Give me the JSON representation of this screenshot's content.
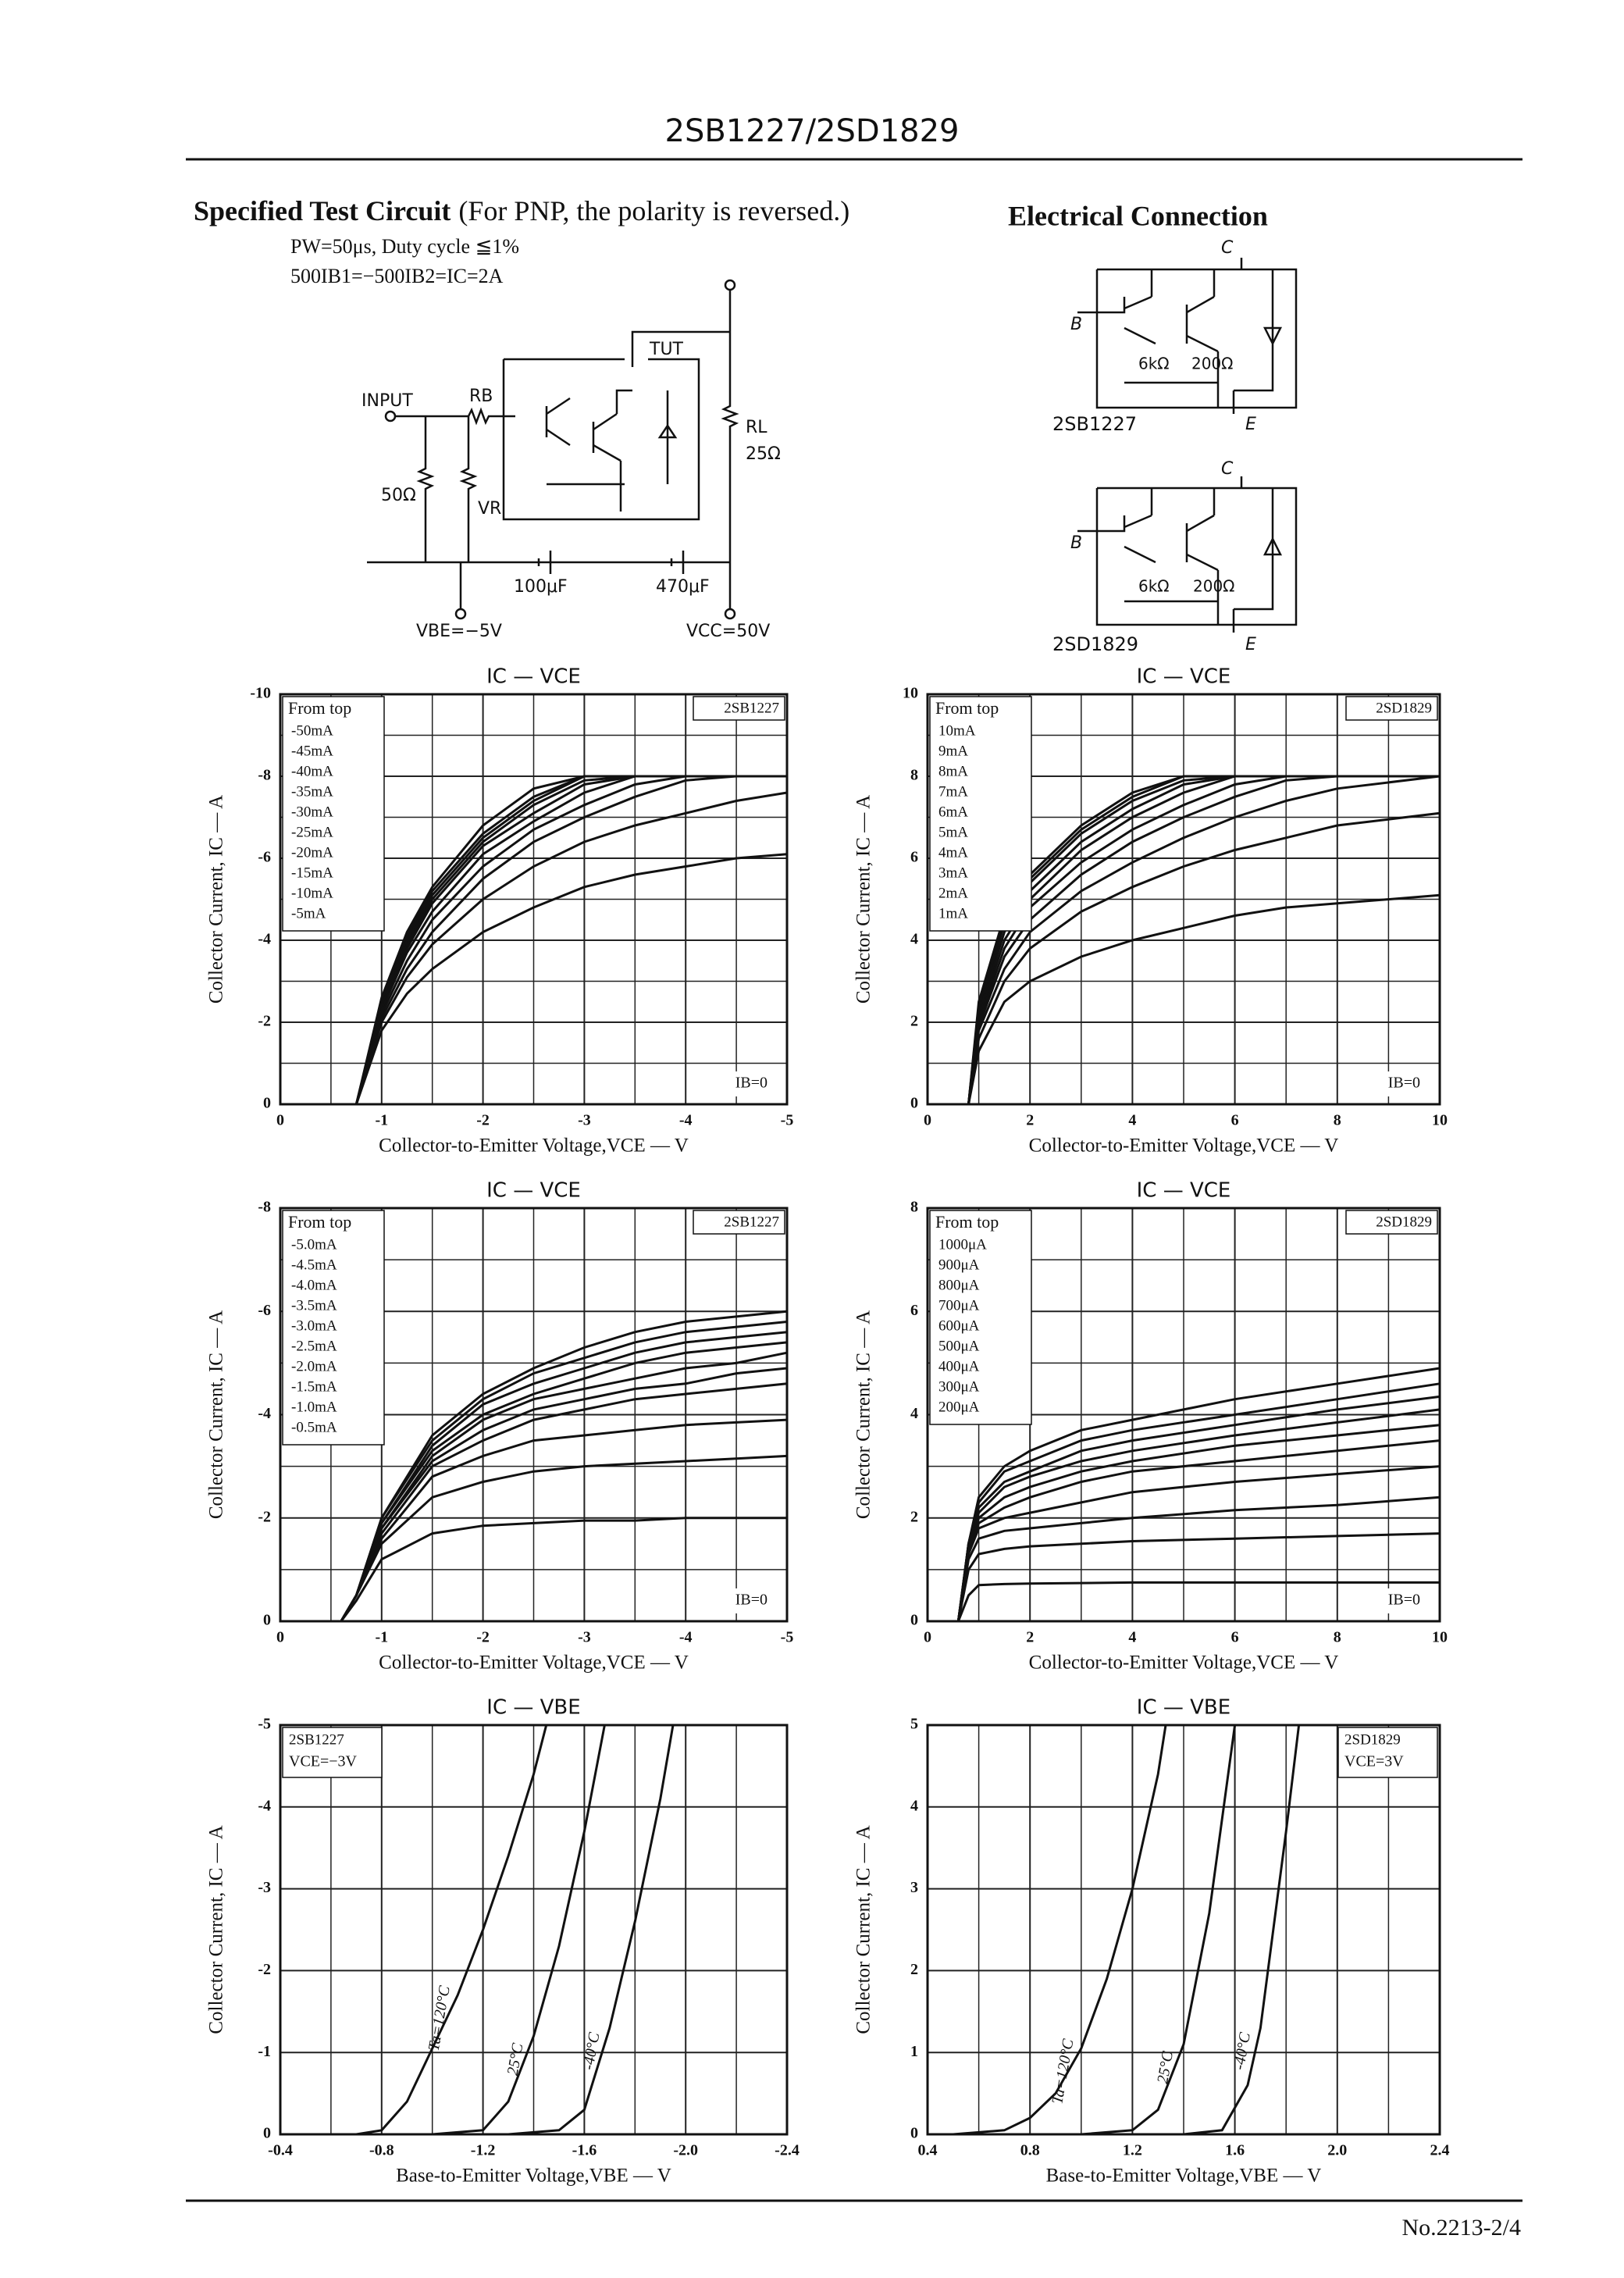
{
  "header": {
    "title": "2SB1227/2SD1829"
  },
  "test_circuit": {
    "title": "Specified Test Circuit",
    "subtitle": "(For PNP, the polarity is reversed.)",
    "conditions": [
      "PW=50μs, Duty cycle ≦1%",
      "500IB1=−500IB2=IC=2A"
    ],
    "labels": {
      "input": "INPUT",
      "rb": "RB",
      "tut": "TUT",
      "rl": "RL",
      "rl_value": "25Ω",
      "r50": "50Ω",
      "vr": "VR",
      "c1": "100μF",
      "c2": "470μF",
      "vbe": "VBE=−5V",
      "vcc": "VCC=50V"
    }
  },
  "electrical_connection": {
    "title": "Electrical Connection",
    "devices": [
      {
        "name": "2SB1227",
        "c": "C",
        "b": "B",
        "e": "E",
        "r1": "6kΩ",
        "r2": "200Ω"
      },
      {
        "name": "2SD1829",
        "c": "C",
        "b": "B",
        "e": "E",
        "r1": "6kΩ",
        "r2": "200Ω"
      }
    ]
  },
  "chart_data": [
    {
      "type": "line",
      "title": "IC — VCE",
      "x_label": "Collector-to-Emitter Voltage,VCE — V",
      "y_label": "Collector Current, IC — A",
      "device": "2SB1227",
      "legend_title": "From top",
      "note": "IB=0",
      "series_labels": "legend",
      "legend": "upper left",
      "grid": true,
      "grid_divisions": [
        2,
        2
      ],
      "color": "#111",
      "xlim": [
        0,
        -5
      ],
      "ylim": [
        0,
        -10
      ],
      "xticks": [
        0,
        -1,
        -2,
        -3,
        -4,
        -5
      ],
      "yticks": [
        0,
        -2,
        -4,
        -6,
        -8,
        -10
      ],
      "x": [
        0,
        -0.5,
        -0.75,
        -1,
        -1.25,
        -1.5,
        -2,
        -2.5,
        -3,
        -3.5,
        -4,
        -4.5,
        -5
      ],
      "series": [
        {
          "name": "-50mA",
          "values": [
            0,
            0,
            0,
            -2.6,
            -4.2,
            -5.3,
            -6.8,
            -7.7,
            -8,
            -8,
            -8,
            -8,
            -8
          ]
        },
        {
          "name": "-45mA",
          "values": [
            0,
            0,
            0,
            -2.5,
            -4.1,
            -5.2,
            -6.6,
            -7.5,
            -8,
            -8,
            -8,
            -8,
            -8
          ]
        },
        {
          "name": "-40mA",
          "values": [
            0,
            0,
            0,
            -2.5,
            -4.0,
            -5.1,
            -6.5,
            -7.4,
            -8,
            -8,
            -8,
            -8,
            -8
          ]
        },
        {
          "name": "-35mA",
          "values": [
            0,
            0,
            0,
            -2.4,
            -3.9,
            -5.0,
            -6.4,
            -7.3,
            -7.9,
            -8,
            -8,
            -8,
            -8
          ]
        },
        {
          "name": "-30mA",
          "values": [
            0,
            0,
            0,
            -2.4,
            -3.8,
            -4.9,
            -6.3,
            -7.1,
            -7.8,
            -8,
            -8,
            -8,
            -8
          ]
        },
        {
          "name": "-25mA",
          "values": [
            0,
            0,
            0,
            -2.3,
            -3.7,
            -4.7,
            -6.1,
            -6.9,
            -7.6,
            -8,
            -8,
            -8,
            -8
          ]
        },
        {
          "name": "-20mA",
          "values": [
            0,
            0,
            0,
            -2.2,
            -3.5,
            -4.5,
            -5.8,
            -6.7,
            -7.3,
            -7.8,
            -8,
            -8,
            -8
          ]
        },
        {
          "name": "-15mA",
          "values": [
            0,
            0,
            0,
            -2.1,
            -3.3,
            -4.2,
            -5.5,
            -6.4,
            -7.0,
            -7.5,
            -7.9,
            -8,
            -8
          ]
        },
        {
          "name": "-10mA",
          "values": [
            0,
            0,
            0,
            -2.0,
            -3.1,
            -3.9,
            -5.0,
            -5.8,
            -6.4,
            -6.8,
            -7.1,
            -7.4,
            -7.6
          ]
        },
        {
          "name": "-5mA",
          "values": [
            0,
            0,
            0,
            -1.8,
            -2.7,
            -3.3,
            -4.2,
            -4.8,
            -5.3,
            -5.6,
            -5.8,
            -6.0,
            -6.1
          ]
        }
      ]
    },
    {
      "type": "line",
      "title": "IC — VCE",
      "x_label": "Collector-to-Emitter Voltage,VCE — V",
      "y_label": "Collector Current, IC — A",
      "device": "2SD1829",
      "legend_title": "From top",
      "note": "IB=0",
      "series_labels": "legend",
      "legend": "upper left",
      "grid": true,
      "grid_divisions": [
        2,
        2
      ],
      "color": "#111",
      "xlim": [
        0,
        10
      ],
      "ylim": [
        0,
        10
      ],
      "xticks": [
        0,
        2,
        4,
        6,
        8,
        10
      ],
      "yticks": [
        0,
        2,
        4,
        6,
        8,
        10
      ],
      "x": [
        0,
        0.8,
        1,
        1.5,
        2,
        3,
        4,
        5,
        6,
        7,
        8,
        10
      ],
      "series": [
        {
          "name": "10mA",
          "values": [
            0,
            0,
            2.5,
            4.6,
            5.6,
            6.8,
            7.6,
            8,
            8,
            8,
            8,
            8
          ]
        },
        {
          "name": "9mA",
          "values": [
            0,
            0,
            2.4,
            4.5,
            5.5,
            6.7,
            7.5,
            8,
            8,
            8,
            8,
            8
          ]
        },
        {
          "name": "8mA",
          "values": [
            0,
            0,
            2.3,
            4.4,
            5.4,
            6.6,
            7.4,
            7.9,
            8,
            8,
            8,
            8
          ]
        },
        {
          "name": "7mA",
          "values": [
            0,
            0,
            2.2,
            4.2,
            5.2,
            6.4,
            7.2,
            7.8,
            8,
            8,
            8,
            8
          ]
        },
        {
          "name": "6mA",
          "values": [
            0,
            0,
            2.1,
            4.0,
            5.0,
            6.2,
            7.0,
            7.6,
            8,
            8,
            8,
            8
          ]
        },
        {
          "name": "5mA",
          "values": [
            0,
            0,
            2.0,
            3.8,
            4.8,
            5.9,
            6.7,
            7.3,
            7.8,
            8,
            8,
            8
          ]
        },
        {
          "name": "4mA",
          "values": [
            0,
            0,
            1.9,
            3.6,
            4.5,
            5.6,
            6.4,
            7.0,
            7.5,
            7.9,
            8,
            8
          ]
        },
        {
          "name": "3mA",
          "values": [
            0,
            0,
            1.8,
            3.3,
            4.2,
            5.2,
            5.9,
            6.5,
            7.0,
            7.4,
            7.7,
            8
          ]
        },
        {
          "name": "2mA",
          "values": [
            0,
            0,
            1.6,
            3.0,
            3.8,
            4.7,
            5.3,
            5.8,
            6.2,
            6.5,
            6.8,
            7.1
          ]
        },
        {
          "name": "1mA",
          "values": [
            0,
            0,
            1.3,
            2.5,
            3.0,
            3.6,
            4.0,
            4.3,
            4.6,
            4.8,
            4.9,
            5.1
          ]
        }
      ]
    },
    {
      "type": "line",
      "title": "IC — VCE",
      "x_label": "Collector-to-Emitter Voltage,VCE — V",
      "y_label": "Collector Current, IC — A",
      "device": "2SB1227",
      "legend_title": "From top",
      "note": "IB=0",
      "series_labels": "legend",
      "legend": "upper left",
      "grid": true,
      "grid_divisions": [
        2,
        2
      ],
      "color": "#111",
      "xlim": [
        0,
        -5
      ],
      "ylim": [
        0,
        -8
      ],
      "xticks": [
        0,
        -1,
        -2,
        -3,
        -4,
        -5
      ],
      "yticks": [
        0,
        -2,
        -4,
        -6,
        -8
      ],
      "x": [
        0,
        -0.6,
        -0.75,
        -1,
        -1.5,
        -2,
        -2.5,
        -3,
        -3.5,
        -4,
        -4.5,
        -5
      ],
      "series": [
        {
          "name": "-5.0mA",
          "values": [
            0,
            0,
            -0.5,
            -2.0,
            -3.6,
            -4.4,
            -4.9,
            -5.3,
            -5.6,
            -5.8,
            -5.9,
            -6.0
          ]
        },
        {
          "name": "-4.5mA",
          "values": [
            0,
            0,
            -0.5,
            -2.0,
            -3.5,
            -4.3,
            -4.8,
            -5.1,
            -5.4,
            -5.6,
            -5.7,
            -5.8
          ]
        },
        {
          "name": "-4.0mA",
          "values": [
            0,
            0,
            -0.5,
            -1.9,
            -3.4,
            -4.2,
            -4.6,
            -4.9,
            -5.2,
            -5.4,
            -5.5,
            -5.6
          ]
        },
        {
          "name": "-3.5mA",
          "values": [
            0,
            0,
            -0.5,
            -1.9,
            -3.3,
            -4.0,
            -4.4,
            -4.7,
            -5.0,
            -5.2,
            -5.3,
            -5.4
          ]
        },
        {
          "name": "-3.0mA",
          "values": [
            0,
            0,
            -0.5,
            -1.8,
            -3.2,
            -3.9,
            -4.3,
            -4.5,
            -4.7,
            -4.9,
            -5.0,
            -5.2
          ]
        },
        {
          "name": "-2.5mA",
          "values": [
            0,
            0,
            -0.5,
            -1.8,
            -3.1,
            -3.7,
            -4.1,
            -4.3,
            -4.5,
            -4.6,
            -4.8,
            -4.9
          ]
        },
        {
          "name": "-2.0mA",
          "values": [
            0,
            0,
            -0.5,
            -1.7,
            -3.0,
            -3.5,
            -3.9,
            -4.1,
            -4.3,
            -4.4,
            -4.5,
            -4.6
          ]
        },
        {
          "name": "-1.5mA",
          "values": [
            0,
            0,
            -0.5,
            -1.6,
            -2.8,
            -3.2,
            -3.5,
            -3.6,
            -3.7,
            -3.8,
            -3.85,
            -3.9
          ]
        },
        {
          "name": "-1.0mA",
          "values": [
            0,
            0,
            -0.5,
            -1.5,
            -2.4,
            -2.7,
            -2.9,
            -3.0,
            -3.05,
            -3.1,
            -3.15,
            -3.2
          ]
        },
        {
          "name": "-0.5mA",
          "values": [
            0,
            0,
            -0.4,
            -1.2,
            -1.7,
            -1.85,
            -1.9,
            -1.95,
            -1.95,
            -2.0,
            -2.0,
            -2.0
          ]
        }
      ]
    },
    {
      "type": "line",
      "title": "IC — VCE",
      "x_label": "Collector-to-Emitter Voltage,VCE — V",
      "y_label": "Collector Current, IC — A",
      "device": "2SD1829",
      "legend_title": "From top",
      "note": "IB=0",
      "series_labels": "legend",
      "legend": "upper left",
      "grid": true,
      "grid_divisions": [
        2,
        2
      ],
      "color": "#111",
      "xlim": [
        0,
        10
      ],
      "ylim": [
        0,
        8
      ],
      "xticks": [
        0,
        2,
        4,
        6,
        8,
        10
      ],
      "yticks": [
        0,
        2,
        4,
        6,
        8
      ],
      "x": [
        0,
        0.6,
        0.8,
        1,
        1.5,
        2,
        3,
        4,
        6,
        8,
        10
      ],
      "series": [
        {
          "name": "1000μA",
          "values": [
            0,
            0,
            1.5,
            2.4,
            3.0,
            3.3,
            3.7,
            3.9,
            4.3,
            4.6,
            4.9
          ]
        },
        {
          "name": "900μA",
          "values": [
            0,
            0,
            1.5,
            2.3,
            2.9,
            3.1,
            3.5,
            3.7,
            4.0,
            4.3,
            4.6
          ]
        },
        {
          "name": "800μA",
          "values": [
            0,
            0,
            1.5,
            2.2,
            2.7,
            2.9,
            3.3,
            3.5,
            3.8,
            4.1,
            4.35
          ]
        },
        {
          "name": "700μA",
          "values": [
            0,
            0,
            1.4,
            2.1,
            2.6,
            2.8,
            3.1,
            3.3,
            3.6,
            3.85,
            4.1
          ]
        },
        {
          "name": "600μA",
          "values": [
            0,
            0,
            1.4,
            2.0,
            2.4,
            2.6,
            2.9,
            3.1,
            3.4,
            3.6,
            3.8
          ]
        },
        {
          "name": "500μA",
          "values": [
            0,
            0,
            1.4,
            1.9,
            2.2,
            2.4,
            2.7,
            2.9,
            3.1,
            3.3,
            3.5
          ]
        },
        {
          "name": "400μA",
          "values": [
            0,
            0,
            1.3,
            1.8,
            2.0,
            2.1,
            2.3,
            2.5,
            2.7,
            2.85,
            3.0
          ]
        },
        {
          "name": "300μA",
          "values": [
            0,
            0,
            1.2,
            1.6,
            1.75,
            1.8,
            1.9,
            2.0,
            2.15,
            2.25,
            2.4
          ]
        },
        {
          "name": "200μA",
          "values": [
            0,
            0,
            1.0,
            1.3,
            1.4,
            1.45,
            1.5,
            1.55,
            1.6,
            1.65,
            1.7
          ]
        },
        {
          "values": [
            0,
            0,
            0.5,
            0.7,
            0.72,
            0.73,
            0.74,
            0.75,
            0.75,
            0.75,
            0.75
          ]
        }
      ]
    },
    {
      "type": "line",
      "title": "IC — VBE",
      "x_label": "Base-to-Emitter Voltage,VBE — V",
      "y_label": "Collector Current, IC — A",
      "device": "2SB1227",
      "note": "VCE=−3V",
      "series_labels": "on-curve",
      "legend": "upper left",
      "grid": true,
      "grid_divisions": [
        2,
        1
      ],
      "color": "#111",
      "xlim": [
        -0.4,
        -2.4
      ],
      "ylim": [
        0,
        -5
      ],
      "xticks": [
        -0.4,
        -0.8,
        -1.2,
        -1.6,
        {
          "value": -2,
          "label": "-2.0"
        },
        -2.4
      ],
      "yticks": [
        0,
        -1,
        -2,
        -3,
        -4,
        -5
      ],
      "series": [
        {
          "name": "Ta=120°C",
          "x": [
            -0.7,
            -0.8,
            -0.9,
            -1.0,
            -1.1,
            -1.2,
            -1.3,
            -1.4,
            -1.45
          ],
          "values": [
            0,
            -0.05,
            -0.4,
            -1.05,
            -1.7,
            -2.5,
            -3.4,
            -4.4,
            -5
          ]
        },
        {
          "name": "25°C",
          "x": [
            -1.0,
            -1.2,
            -1.3,
            -1.4,
            -1.5,
            -1.6,
            -1.68
          ],
          "values": [
            0,
            -0.05,
            -0.4,
            -1.2,
            -2.3,
            -3.7,
            -5
          ]
        },
        {
          "name": "-40°C",
          "x": [
            -1.3,
            -1.5,
            -1.6,
            -1.7,
            -1.8,
            -1.9,
            -1.95
          ],
          "values": [
            0,
            -0.05,
            -0.3,
            -1.3,
            -2.6,
            -4.1,
            -5
          ]
        }
      ]
    },
    {
      "type": "line",
      "title": "IC — VBE",
      "x_label": "Base-to-Emitter Voltage,VBE — V",
      "y_label": "Collector Current, IC — A",
      "device": "2SD1829",
      "note": "VCE=3V",
      "series_labels": "on-curve",
      "legend": "upper right",
      "grid": true,
      "grid_divisions": [
        2,
        1
      ],
      "color": "#111",
      "xlim": [
        0.4,
        2.4
      ],
      "ylim": [
        0,
        5
      ],
      "xticks": [
        0.4,
        0.8,
        1.2,
        1.6,
        {
          "value": 2,
          "label": "2.0"
        },
        2.4
      ],
      "yticks": [
        0,
        1,
        2,
        3,
        4,
        5
      ],
      "series": [
        {
          "name": "Ta=120°C",
          "x": [
            0.5,
            0.7,
            0.8,
            0.9,
            1.0,
            1.1,
            1.2,
            1.3,
            1.33
          ],
          "values": [
            0,
            0.05,
            0.2,
            0.5,
            1.05,
            1.9,
            3.0,
            4.4,
            5
          ]
        },
        {
          "name": "25°C",
          "x": [
            1.0,
            1.2,
            1.3,
            1.4,
            1.5,
            1.6
          ],
          "values": [
            0,
            0.05,
            0.3,
            1.1,
            2.7,
            5
          ]
        },
        {
          "name": "-40°C",
          "x": [
            1.4,
            1.55,
            1.65,
            1.7,
            1.8,
            1.85
          ],
          "values": [
            0,
            0.05,
            0.6,
            1.3,
            3.7,
            5
          ]
        }
      ]
    }
  ],
  "footer": {
    "page": "No.2213-2/4"
  }
}
